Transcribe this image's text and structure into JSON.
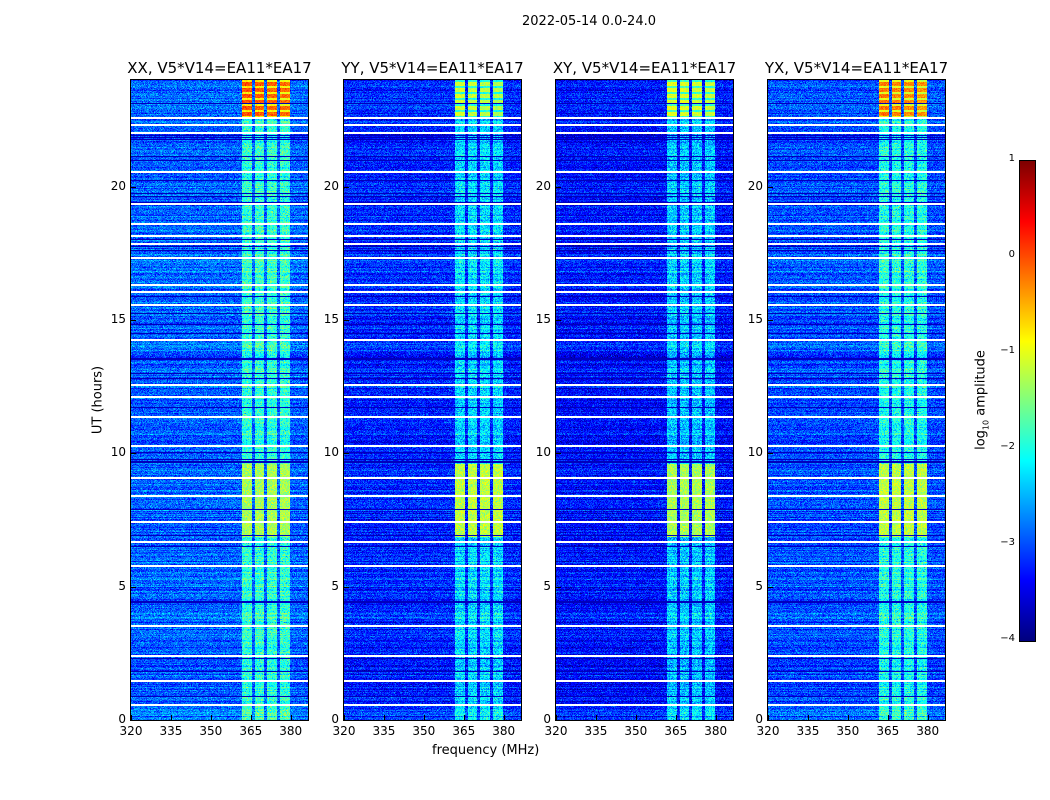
{
  "suptitle": "2022-05-14 0.0-24.0",
  "chart_data": {
    "type": "heatmap",
    "xlabel": "frequency (MHz)",
    "ylabel": "UT (hours)",
    "xlim": [
      320,
      386.5
    ],
    "ylim": [
      0,
      24
    ],
    "xticks": [
      320,
      335,
      350,
      365,
      380
    ],
    "yticks": [
      0,
      5,
      10,
      15,
      20
    ],
    "panels": [
      {
        "title": "XX, V5*V14=EA11*EA17",
        "base_level": -2.9,
        "band_level": -1.9,
        "top_level": 0.0,
        "mid_level": -1.3
      },
      {
        "title": "YY, V5*V14=EA11*EA17",
        "base_level": -3.2,
        "band_level": -2.3,
        "top_level": -1.1,
        "mid_level": -1.2
      },
      {
        "title": "XY, V5*V14=EA11*EA17",
        "base_level": -3.3,
        "band_level": -2.4,
        "top_level": -1.0,
        "mid_level": -1.3
      },
      {
        "title": "YX, V5*V14=EA11*EA17",
        "base_level": -3.0,
        "band_level": -2.0,
        "top_level": -0.2,
        "mid_level": -1.2
      }
    ],
    "rfi_band_mhz": [
      361.5,
      380.5
    ],
    "strong_rfi_hours": [
      22.6,
      24
    ],
    "elevated_rfi_hours": [
      6.9,
      9.6
    ],
    "flagged_hours": [
      0.6,
      1.5,
      2.45,
      3.55,
      5.8,
      6.7,
      7.45,
      8.45,
      9.1,
      10.3,
      11.4,
      12.15,
      12.6,
      14.3,
      15.6,
      16.1,
      16.35,
      17.35,
      17.9,
      18.2,
      18.65,
      19.4,
      20.6,
      22.05,
      22.35,
      22.6
    ],
    "colormap": "jet",
    "colorbar": {
      "label": "log10 amplitude",
      "label_main": "log",
      "label_sub": "10",
      "label_rest": " amplitude",
      "range": [
        -4,
        1
      ],
      "ticks": [
        "1",
        "0",
        "−1",
        "−2",
        "−3",
        "−4"
      ]
    }
  }
}
